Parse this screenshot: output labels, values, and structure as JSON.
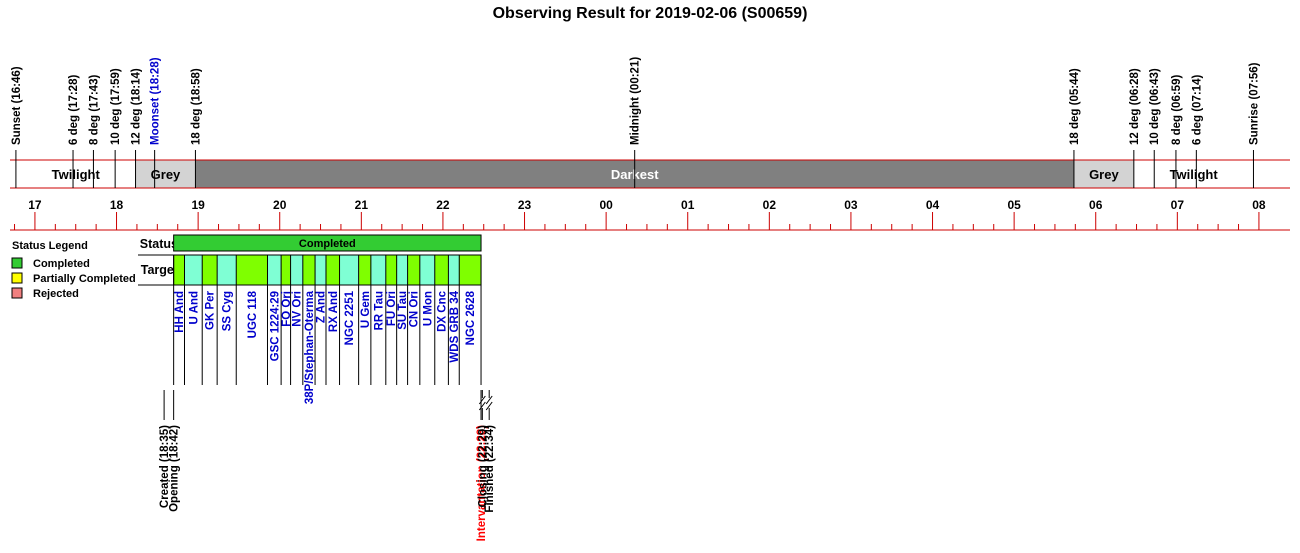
{
  "title": "Observing Result for 2019-02-06 (S00659)",
  "chart_data": {
    "type": "timeline",
    "time_axis": {
      "range_hours": [
        16.67,
        32.0
      ],
      "tick_labels": [
        "17",
        "18",
        "19",
        "20",
        "21",
        "22",
        "23",
        "00",
        "01",
        "02",
        "03",
        "04",
        "05",
        "06",
        "07",
        "08"
      ],
      "tick_hours": [
        17,
        18,
        19,
        20,
        21,
        22,
        23,
        24,
        25,
        26,
        27,
        28,
        29,
        30,
        31,
        32
      ]
    },
    "events_top": [
      {
        "label": "Sunset (16:46)",
        "t": 16.767,
        "color": "#000000"
      },
      {
        "label": "6 deg (17:28)",
        "t": 17.467,
        "color": "#000000"
      },
      {
        "label": "8 deg (17:43)",
        "t": 17.717,
        "color": "#000000"
      },
      {
        "label": "10 deg (17:59)",
        "t": 17.983,
        "color": "#000000"
      },
      {
        "label": "12 deg (18:14)",
        "t": 18.233,
        "color": "#000000"
      },
      {
        "label": "Moonset (18:28)",
        "t": 18.467,
        "color": "#0000cc"
      },
      {
        "label": "18 deg (18:58)",
        "t": 18.967,
        "color": "#000000"
      },
      {
        "label": "Midnight (00:21)",
        "t": 24.35,
        "color": "#000000"
      },
      {
        "label": "18 deg (05:44)",
        "t": 29.733,
        "color": "#000000"
      },
      {
        "label": "12 deg (06:28)",
        "t": 30.467,
        "color": "#000000"
      },
      {
        "label": "10 deg (06:43)",
        "t": 30.717,
        "color": "#000000"
      },
      {
        "label": "8 deg (06:59)",
        "t": 30.983,
        "color": "#000000"
      },
      {
        "label": "6 deg (07:14)",
        "t": 31.233,
        "color": "#000000"
      },
      {
        "label": "Sunrise (07:56)",
        "t": 31.933,
        "color": "#000000"
      }
    ],
    "phases": [
      {
        "label": "Twilight",
        "start": 16.767,
        "end": 18.233,
        "color": "#ffffff",
        "text_color": "#000000"
      },
      {
        "label": "Grey",
        "start": 18.233,
        "end": 18.967,
        "color": "#d3d3d3",
        "text_color": "#000000"
      },
      {
        "label": "Darkest",
        "start": 18.967,
        "end": 29.733,
        "color": "#808080",
        "text_color": "#ffffff"
      },
      {
        "label": "Grey",
        "start": 29.733,
        "end": 30.467,
        "color": "#d3d3d3",
        "text_color": "#000000"
      },
      {
        "label": "Twilight",
        "start": 30.467,
        "end": 31.933,
        "color": "#ffffff",
        "text_color": "#000000"
      }
    ],
    "status_row_label": "Status",
    "targets_row_label": "Targets",
    "status": {
      "label": "Completed",
      "start": 18.7,
      "end": 22.467,
      "color": "#33cc33"
    },
    "targets_span": {
      "start": 18.7,
      "end": 22.467
    },
    "targets": [
      {
        "name": "HH And",
        "start": 18.7,
        "end": 18.833
      },
      {
        "name": "U And",
        "start": 18.833,
        "end": 19.05
      },
      {
        "name": "GK Per",
        "start": 19.05,
        "end": 19.233
      },
      {
        "name": "SS Cyg",
        "start": 19.233,
        "end": 19.467
      },
      {
        "name": "UGC 118",
        "start": 19.467,
        "end": 19.85
      },
      {
        "name": "GSC 1224:29",
        "start": 19.85,
        "end": 20.017
      },
      {
        "name": "FO Ori",
        "start": 20.017,
        "end": 20.133
      },
      {
        "name": "NV Ori",
        "start": 20.133,
        "end": 20.283
      },
      {
        "name": "38P/Stephan-Oterma",
        "start": 20.283,
        "end": 20.433
      },
      {
        "name": "Z And",
        "start": 20.433,
        "end": 20.567
      },
      {
        "name": "RX And",
        "start": 20.567,
        "end": 20.733
      },
      {
        "name": "NGC 2251",
        "start": 20.733,
        "end": 20.967
      },
      {
        "name": "U Gem",
        "start": 20.967,
        "end": 21.117
      },
      {
        "name": "RR Tau",
        "start": 21.117,
        "end": 21.3
      },
      {
        "name": "FU Ori",
        "start": 21.3,
        "end": 21.433
      },
      {
        "name": "SU Tau",
        "start": 21.433,
        "end": 21.567
      },
      {
        "name": "CN Ori",
        "start": 21.567,
        "end": 21.717
      },
      {
        "name": "U Mon",
        "start": 21.717,
        "end": 21.9
      },
      {
        "name": "DX Cnc",
        "start": 21.9,
        "end": 22.067
      },
      {
        "name": "WDS GRB 34",
        "start": 22.067,
        "end": 22.2
      },
      {
        "name": "NGC 2628",
        "start": 22.2,
        "end": 22.467
      }
    ],
    "target_colors": [
      "#7fff00",
      "#7fffd4"
    ],
    "events_bottom": [
      {
        "label": "Created (18:35)",
        "t": 18.583,
        "color": "#000000",
        "style": "plain"
      },
      {
        "label": "Opening (18:42)",
        "t": 18.7,
        "color": "#000000",
        "style": "plain"
      },
      {
        "label": "Intervantation (22:28)",
        "t": 22.467,
        "color": "#ff0000",
        "style": "plain"
      },
      {
        "label": "Closing (22:29)",
        "t": 22.483,
        "color": "#000000",
        "style": "break"
      },
      {
        "label": "Finished (22:34)",
        "t": 22.567,
        "color": "#000000",
        "style": "break"
      }
    ],
    "legend": {
      "title": "Status Legend",
      "items": [
        {
          "label": "Completed",
          "color": "#33cc33"
        },
        {
          "label": "Partially Completed",
          "color": "#ffff00"
        },
        {
          "label": "Rejected",
          "color": "#f08080"
        }
      ]
    },
    "line_color": "#cc0000"
  }
}
